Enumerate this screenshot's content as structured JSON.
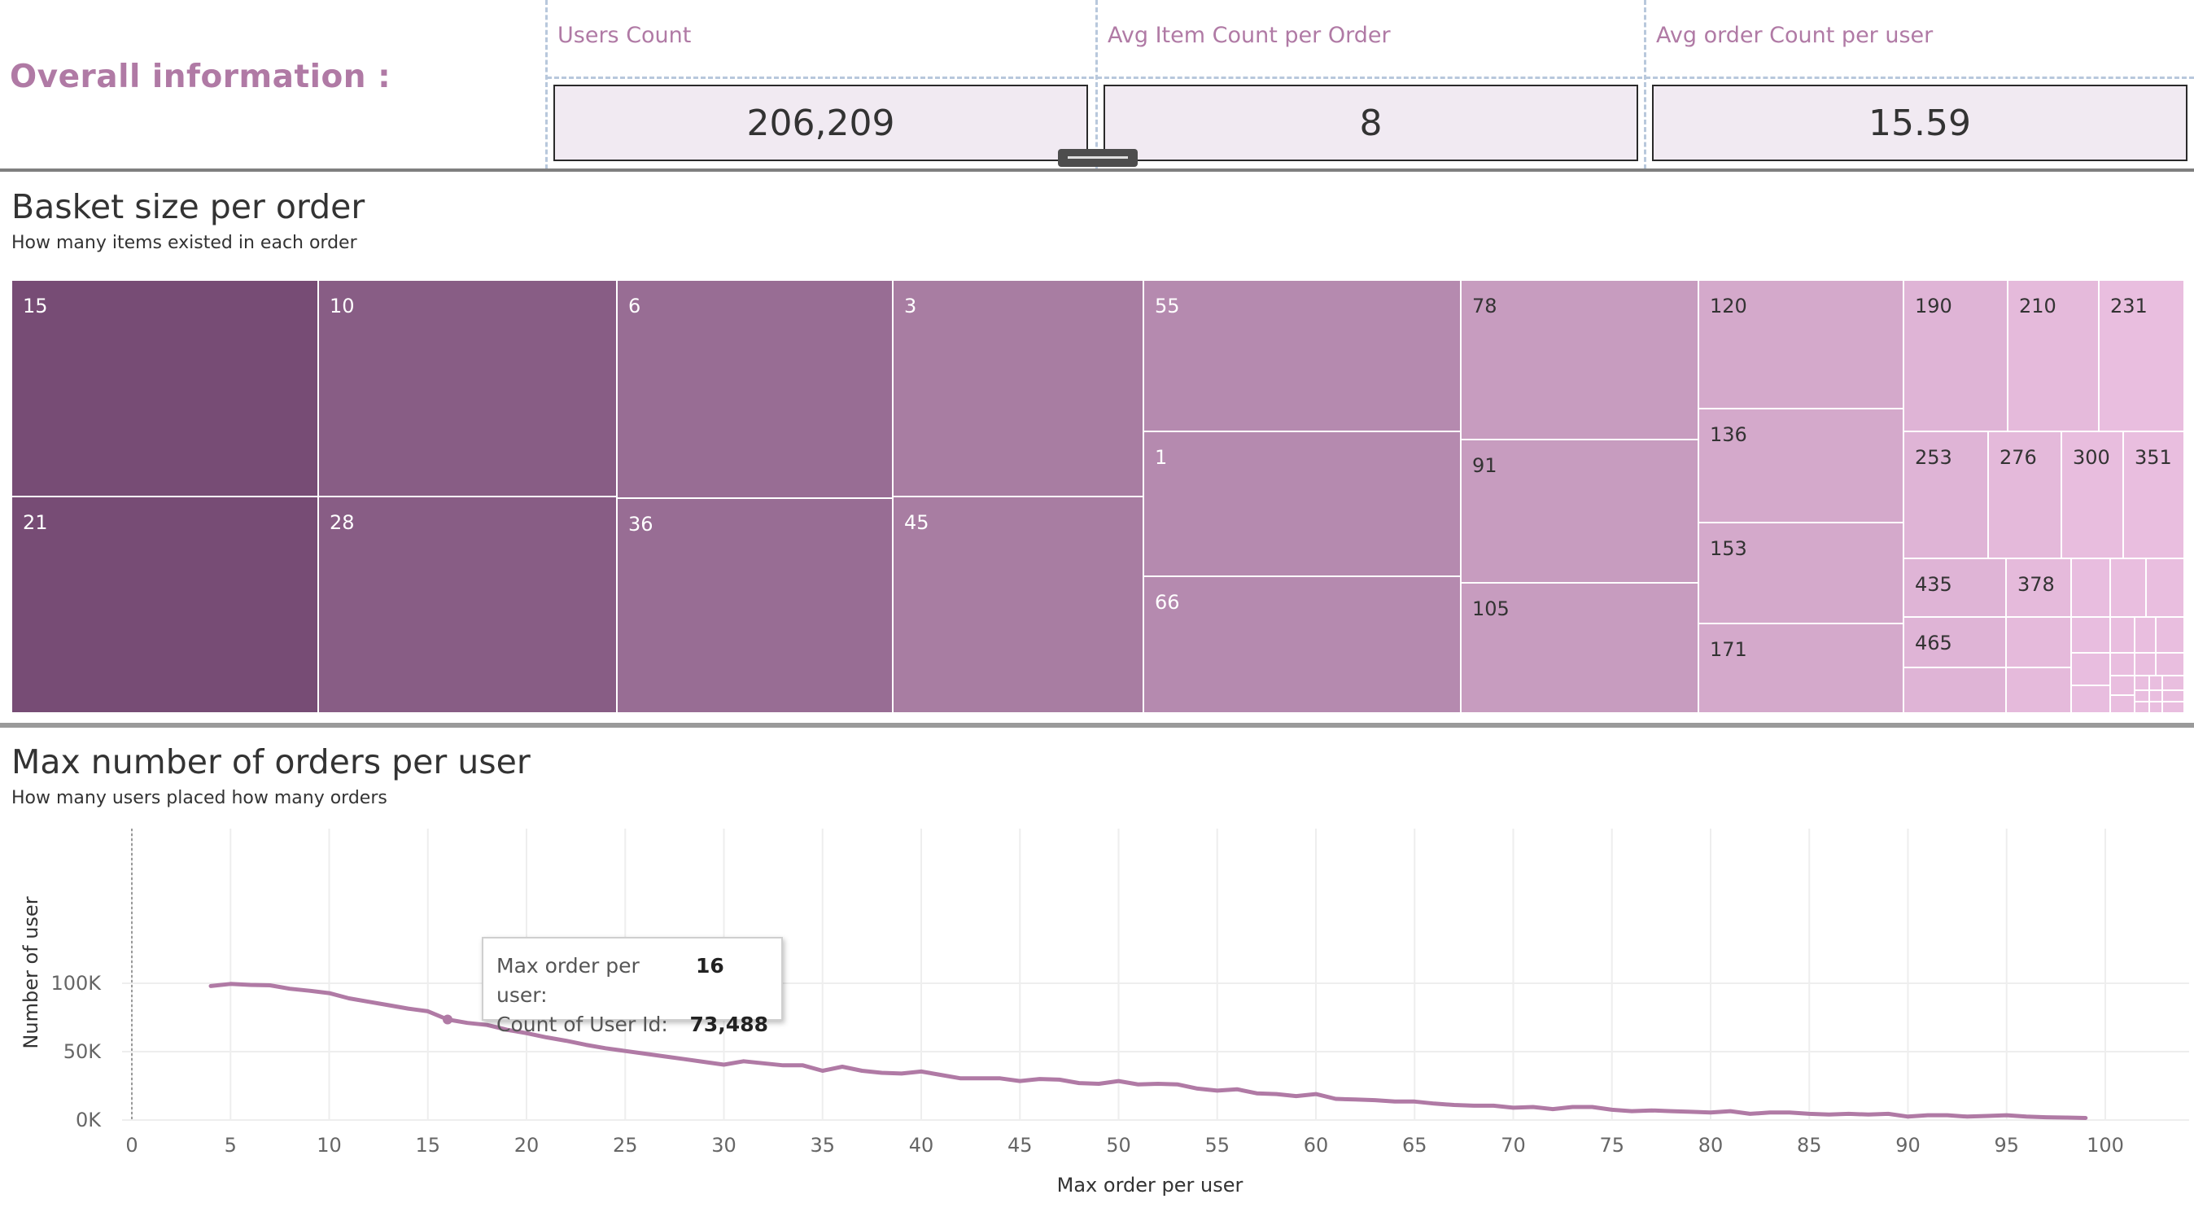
{
  "overall": {
    "title": "Overall information :"
  },
  "kpis": [
    {
      "label": "Users Count",
      "value": "206,209"
    },
    {
      "label": "Avg Item Count per Order",
      "value": "8"
    },
    {
      "label": "Avg order Count per user",
      "value": "15.59"
    }
  ],
  "basket": {
    "title": "Basket size per order",
    "subtitle": "How many items existed in each order"
  },
  "orders": {
    "title": "Max number of orders per user",
    "subtitle": "How many users placed how many orders"
  },
  "tooltip": {
    "k1": "Max order per user:",
    "v1": "16",
    "k2": "Count of User Id:",
    "v2": "73,488"
  },
  "colors": {
    "accent": "#b07aa5",
    "line": "#b07aa5",
    "treemap_dark": "#774c75",
    "treemap_light": "#e9bedf"
  },
  "chart_data": [
    {
      "type": "treemap",
      "title": "Basket size per order",
      "subtitle": "How many items existed in each order",
      "labeled_tiles": [
        "15",
        "21",
        "10",
        "28",
        "6",
        "36",
        "3",
        "45",
        "55",
        "1",
        "66",
        "78",
        "91",
        "105",
        "120",
        "136",
        "153",
        "171",
        "190",
        "210",
        "231",
        "253",
        "276",
        "300",
        "351",
        "435",
        "378",
        "465"
      ]
    },
    {
      "type": "line",
      "title": "Max number of orders per user",
      "subtitle": "How many users placed how many orders",
      "xlabel": "Max order per user",
      "ylabel": "Number of user",
      "xlim": [
        0,
        103
      ],
      "ylim": [
        0,
        100000
      ],
      "xticks": [
        "0",
        "5",
        "10",
        "15",
        "20",
        "25",
        "30",
        "35",
        "40",
        "45",
        "50",
        "55",
        "60",
        "65",
        "70",
        "75",
        "80",
        "85",
        "90",
        "95",
        "100"
      ],
      "yticks": [
        "0K",
        "50K",
        "100K"
      ],
      "grid": true,
      "x": [
        4,
        5,
        6,
        7,
        8,
        9,
        10,
        11,
        12,
        13,
        14,
        15,
        16,
        17,
        18,
        19,
        20,
        21,
        22,
        23,
        24,
        25,
        26,
        27,
        28,
        29,
        30,
        31,
        32,
        33,
        34,
        35,
        36,
        37,
        38,
        39,
        40,
        41,
        42,
        43,
        44,
        45,
        46,
        47,
        48,
        49,
        50,
        51,
        52,
        53,
        54,
        55,
        56,
        57,
        58,
        59,
        60,
        61,
        62,
        63,
        64,
        65,
        66,
        67,
        68,
        69,
        70,
        71,
        72,
        73,
        74,
        75,
        76,
        77,
        78,
        79,
        80,
        81,
        82,
        83,
        84,
        85,
        86,
        87,
        88,
        89,
        90,
        91,
        92,
        93,
        94,
        95,
        96,
        97,
        98,
        99
      ],
      "y": [
        98000,
        99500,
        98800,
        98500,
        96000,
        94500,
        92800,
        89000,
        86500,
        84000,
        81500,
        79500,
        73488,
        71000,
        69500,
        66000,
        63500,
        60500,
        58000,
        55000,
        52500,
        50500,
        48500,
        46500,
        44500,
        42500,
        40500,
        43000,
        41500,
        40000,
        40000,
        36000,
        39000,
        36000,
        34500,
        34000,
        35500,
        33000,
        30500,
        30500,
        30500,
        28500,
        30000,
        29500,
        27000,
        26500,
        28500,
        26000,
        26500,
        26000,
        23000,
        21500,
        22500,
        19500,
        19000,
        17500,
        19000,
        15500,
        15000,
        14500,
        13500,
        13500,
        12000,
        11000,
        10500,
        10500,
        9000,
        9500,
        8000,
        9500,
        9500,
        7500,
        6500,
        7000,
        6500,
        6000,
        5500,
        6500,
        4500,
        5500,
        5500,
        4500,
        4000,
        4500,
        4000,
        4500,
        2500,
        3500,
        3500,
        2500,
        3000,
        3500,
        2500,
        2000,
        1800,
        1500
      ]
    }
  ]
}
